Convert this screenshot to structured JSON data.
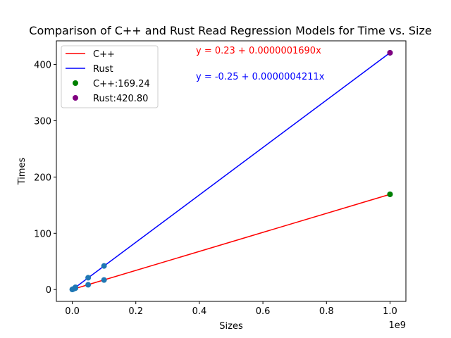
{
  "chart_data": {
    "type": "scatter",
    "title": "Comparison of C++ and Rust Read Regression Models for Time vs. Size",
    "xlabel": "Sizes",
    "ylabel": "Times",
    "x_offset_text": "1e9",
    "xlim": [
      -50000000,
      1050000000
    ],
    "ylim": [
      -21,
      442
    ],
    "x_ticks": [
      0,
      200000000,
      400000000,
      600000000,
      800000000,
      1000000000
    ],
    "x_tick_labels": [
      "0.0",
      "0.2",
      "0.4",
      "0.6",
      "0.8",
      "1.0"
    ],
    "y_ticks": [
      0,
      100,
      200,
      300,
      400
    ],
    "y_tick_labels": [
      "0",
      "100",
      "200",
      "300",
      "400"
    ],
    "grid": false,
    "legend_position": "upper left",
    "scatter_points": {
      "color": "#1f77b4",
      "points": [
        {
          "x": 0,
          "y": 0.2
        },
        {
          "x": 1000000,
          "y": 0.5
        },
        {
          "x": 5000000,
          "y": 1.5
        },
        {
          "x": 10000000,
          "y": 2.5
        },
        {
          "x": 10000000,
          "y": 4.0
        },
        {
          "x": 50000000,
          "y": 8.5
        },
        {
          "x": 50000000,
          "y": 21.0
        },
        {
          "x": 100000000,
          "y": 17.0
        },
        {
          "x": 100000000,
          "y": 42.0
        },
        {
          "x": 1000000000,
          "y": 169.24
        },
        {
          "x": 1000000000,
          "y": 420.8
        }
      ]
    },
    "series": [
      {
        "name": "C++",
        "type": "line",
        "color": "#ff0000",
        "intercept": 0.23,
        "slope": 1.69e-07,
        "x_range": [
          0,
          1000000000
        ]
      },
      {
        "name": "Rust",
        "type": "line",
        "color": "#0000ff",
        "intercept": -0.25,
        "slope": 4.211e-07,
        "x_range": [
          0,
          1000000000
        ]
      },
      {
        "name": "C++:169.24",
        "type": "scatter",
        "color": "#008000",
        "x": 1000000000,
        "y": 169.24
      },
      {
        "name": "Rust:420.80",
        "type": "scatter",
        "color": "#800080",
        "x": 1000000000,
        "y": 420.8
      }
    ],
    "annotations": [
      {
        "text": "y = 0.23 + 0.0000001690x",
        "color": "#ff0000"
      },
      {
        "text": "y = -0.25 + 0.0000004211x",
        "color": "#0000ff"
      }
    ]
  }
}
